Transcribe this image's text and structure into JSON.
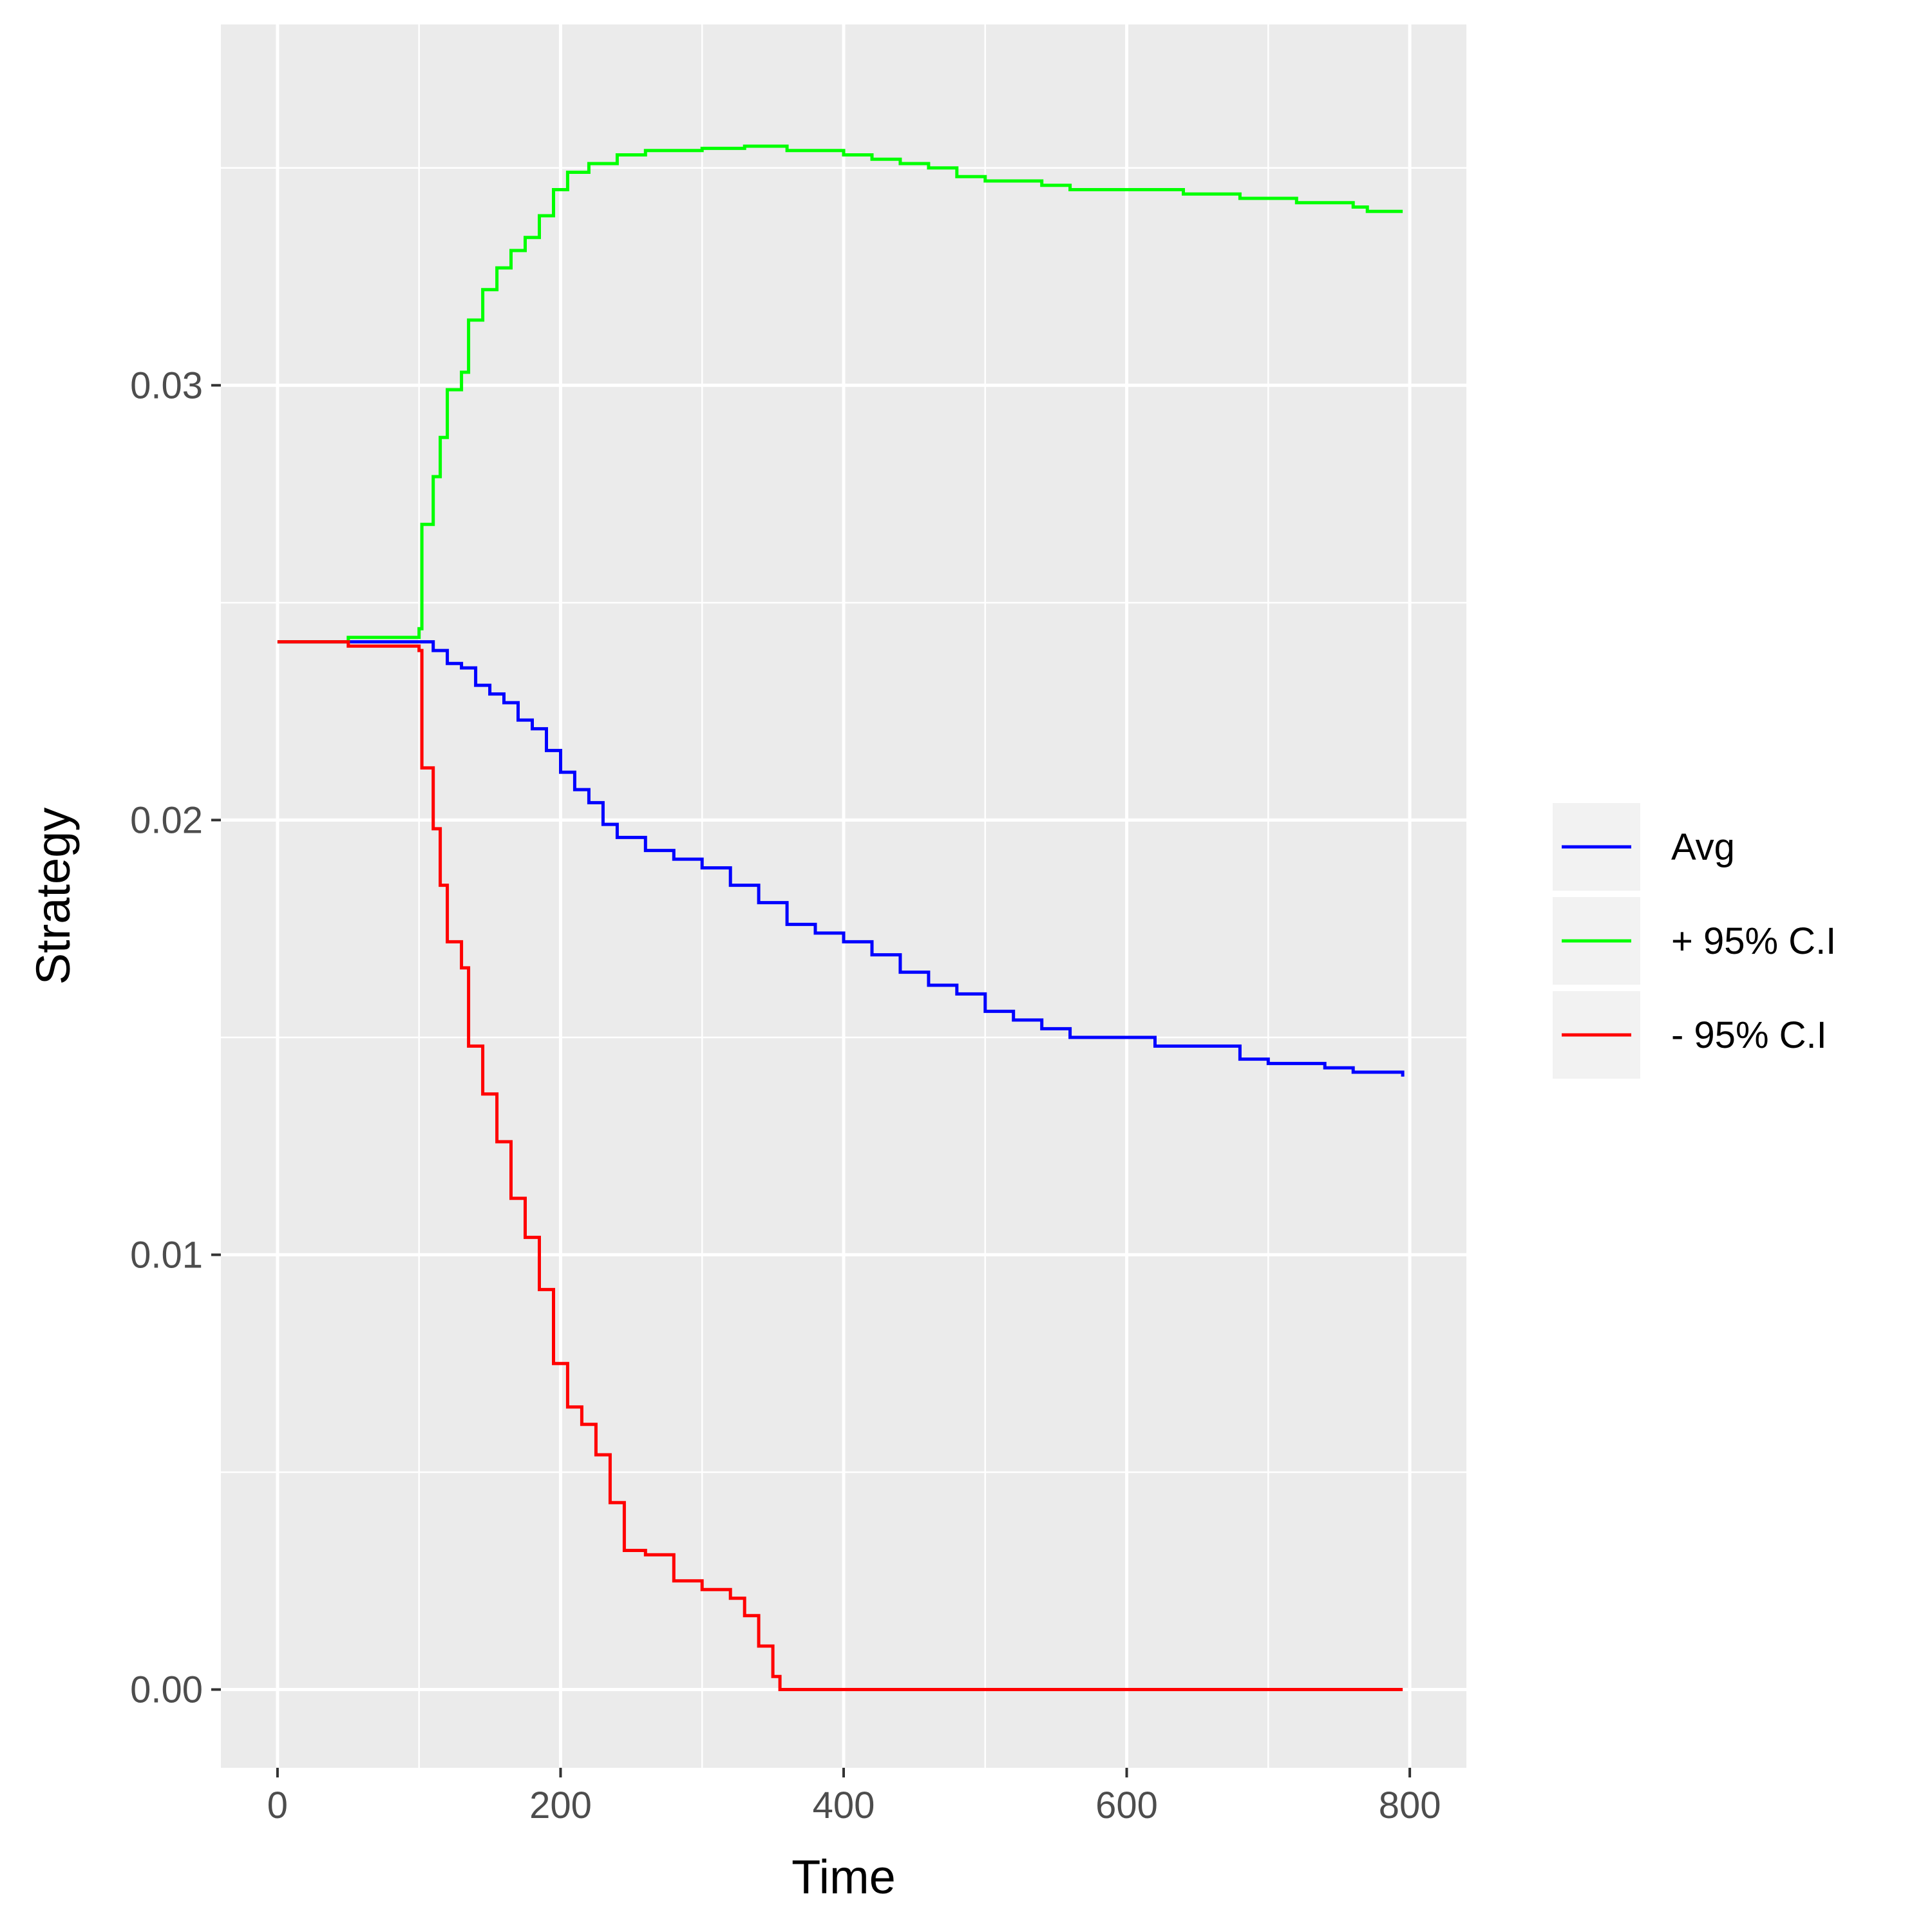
{
  "chart_data": {
    "type": "line",
    "xlabel": "Time",
    "ylabel": "Strategy",
    "xlim": [
      -40,
      840
    ],
    "ylim": [
      -0.0018,
      0.0383
    ],
    "x_ticks": [
      0,
      200,
      400,
      600,
      800
    ],
    "x_tick_labels": [
      "0",
      "200",
      "400",
      "600",
      "800"
    ],
    "y_ticks": [
      0.0,
      0.01,
      0.02,
      0.03
    ],
    "y_tick_labels": [
      "0.00",
      "0.01",
      "0.02",
      "0.03"
    ],
    "grid": true,
    "legend_position": "right",
    "series": [
      {
        "name": "Avg",
        "color": "#0000ff",
        "points": [
          [
            0,
            0.0241
          ],
          [
            50,
            0.0241
          ],
          [
            100,
            0.0241
          ],
          [
            110,
            0.0239
          ],
          [
            120,
            0.0236
          ],
          [
            130,
            0.0235
          ],
          [
            140,
            0.0231
          ],
          [
            150,
            0.0229
          ],
          [
            160,
            0.0227
          ],
          [
            170,
            0.0223
          ],
          [
            180,
            0.0221
          ],
          [
            190,
            0.0216
          ],
          [
            200,
            0.0211
          ],
          [
            210,
            0.0207
          ],
          [
            220,
            0.0204
          ],
          [
            230,
            0.0199
          ],
          [
            240,
            0.0196
          ],
          [
            260,
            0.0193
          ],
          [
            280,
            0.0191
          ],
          [
            300,
            0.0189
          ],
          [
            320,
            0.0185
          ],
          [
            340,
            0.0181
          ],
          [
            360,
            0.0176
          ],
          [
            380,
            0.0174
          ],
          [
            400,
            0.0172
          ],
          [
            420,
            0.0169
          ],
          [
            440,
            0.0165
          ],
          [
            460,
            0.0162
          ],
          [
            480,
            0.016
          ],
          [
            500,
            0.0156
          ],
          [
            520,
            0.0154
          ],
          [
            540,
            0.0152
          ],
          [
            560,
            0.015
          ],
          [
            600,
            0.015
          ],
          [
            620,
            0.0148
          ],
          [
            660,
            0.0148
          ],
          [
            680,
            0.0145
          ],
          [
            700,
            0.0144
          ],
          [
            740,
            0.0143
          ],
          [
            760,
            0.0142
          ],
          [
            795,
            0.0141
          ]
        ]
      },
      {
        "name": "+ 95% C.I",
        "color": "#00ff00",
        "points": [
          [
            0,
            0.0241
          ],
          [
            50,
            0.0242
          ],
          [
            100,
            0.0244
          ],
          [
            102,
            0.0268
          ],
          [
            110,
            0.0279
          ],
          [
            115,
            0.0288
          ],
          [
            120,
            0.0299
          ],
          [
            130,
            0.0303
          ],
          [
            135,
            0.0315
          ],
          [
            145,
            0.0322
          ],
          [
            155,
            0.0327
          ],
          [
            165,
            0.0331
          ],
          [
            175,
            0.0334
          ],
          [
            185,
            0.0339
          ],
          [
            195,
            0.0345
          ],
          [
            205,
            0.0349
          ],
          [
            220,
            0.0351
          ],
          [
            240,
            0.0353
          ],
          [
            260,
            0.0354
          ],
          [
            300,
            0.03545
          ],
          [
            330,
            0.0355
          ],
          [
            360,
            0.0354
          ],
          [
            400,
            0.0353
          ],
          [
            420,
            0.0352
          ],
          [
            440,
            0.0351
          ],
          [
            460,
            0.035
          ],
          [
            480,
            0.0348
          ],
          [
            500,
            0.0347
          ],
          [
            540,
            0.0346
          ],
          [
            560,
            0.0345
          ],
          [
            600,
            0.0345
          ],
          [
            640,
            0.0344
          ],
          [
            660,
            0.0344
          ],
          [
            680,
            0.0343
          ],
          [
            720,
            0.0342
          ],
          [
            760,
            0.0341
          ],
          [
            770,
            0.034
          ],
          [
            795,
            0.034
          ]
        ]
      },
      {
        "name": "- 95% C.I",
        "color": "#ff0000",
        "points": [
          [
            0,
            0.0241
          ],
          [
            50,
            0.024
          ],
          [
            100,
            0.0239
          ],
          [
            102,
            0.0212
          ],
          [
            110,
            0.0198
          ],
          [
            115,
            0.0185
          ],
          [
            120,
            0.0172
          ],
          [
            130,
            0.0166
          ],
          [
            135,
            0.0148
          ],
          [
            145,
            0.0137
          ],
          [
            155,
            0.0126
          ],
          [
            165,
            0.0113
          ],
          [
            175,
            0.0104
          ],
          [
            185,
            0.0092
          ],
          [
            195,
            0.0075
          ],
          [
            205,
            0.0065
          ],
          [
            215,
            0.0061
          ],
          [
            225,
            0.0054
          ],
          [
            235,
            0.0043
          ],
          [
            245,
            0.0032
          ],
          [
            260,
            0.0031
          ],
          [
            280,
            0.0025
          ],
          [
            300,
            0.0023
          ],
          [
            320,
            0.0021
          ],
          [
            330,
            0.0017
          ],
          [
            340,
            0.001
          ],
          [
            350,
            0.0003
          ],
          [
            355,
            0.0
          ],
          [
            795,
            0.0
          ]
        ]
      }
    ]
  }
}
